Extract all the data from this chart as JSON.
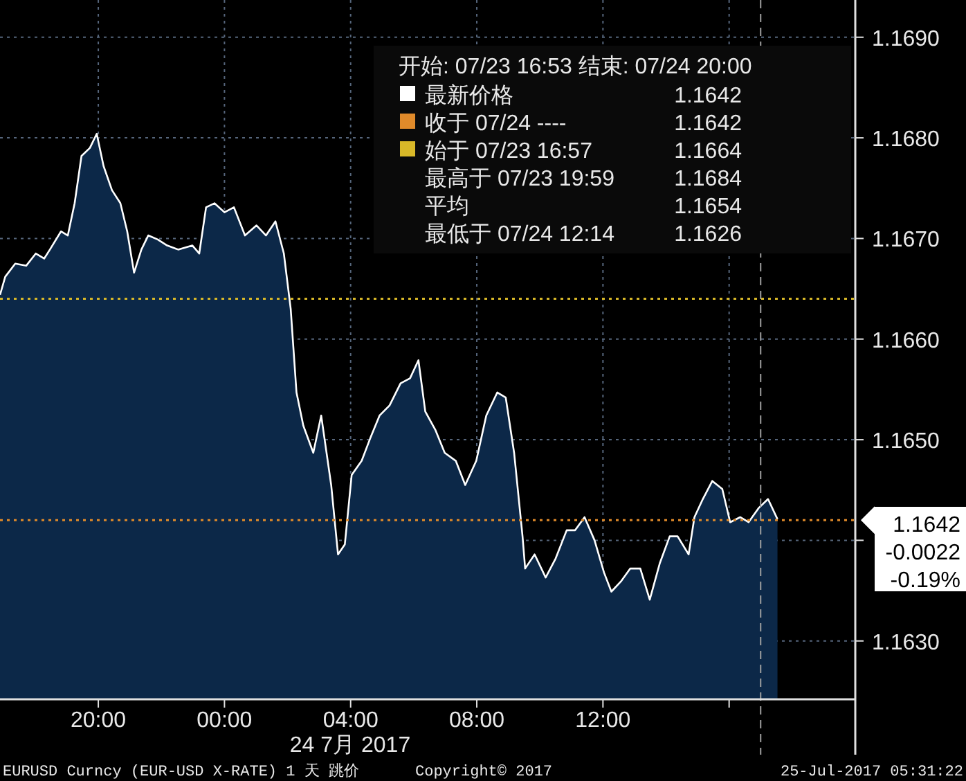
{
  "chart_data": {
    "type": "area",
    "xlim": [
      "2017-07-23T16:53",
      "2017-07-24T20:00"
    ],
    "ylim": [
      1.16242,
      1.16937
    ],
    "xticks": [
      {
        "value": "2017-07-23T20:00",
        "label": "20:00"
      },
      {
        "value": "2017-07-24T00:00",
        "label": "00:00"
      },
      {
        "value": "2017-07-24T04:00",
        "label": "04:00"
      },
      {
        "value": "2017-07-24T08:00",
        "label": "08:00"
      },
      {
        "value": "2017-07-24T12:00",
        "label": "12:00"
      },
      {
        "value": "2017-07-24T16:00",
        "label": null
      }
    ],
    "yticks": [
      {
        "value": 1.163,
        "label": "1.1630"
      },
      {
        "value": 1.164,
        "label": null
      },
      {
        "value": 1.165,
        "label": "1.1650"
      },
      {
        "value": 1.166,
        "label": "1.1660"
      },
      {
        "value": 1.167,
        "label": "1.1670"
      },
      {
        "value": 1.168,
        "label": "1.1680"
      },
      {
        "value": 1.169,
        "label": "1.1690"
      }
    ],
    "grid": true,
    "legend": "top right",
    "series": [
      {
        "name": "最新价格",
        "color": "#ffffff",
        "x": [
          "2017-07-23T16:53",
          "2017-07-23T17:03",
          "2017-07-23T17:22",
          "2017-07-23T17:43",
          "2017-07-23T18:01",
          "2017-07-23T18:17",
          "2017-07-23T18:28",
          "2017-07-23T18:49",
          "2017-07-23T19:02",
          "2017-07-23T19:15",
          "2017-07-23T19:28",
          "2017-07-23T19:44",
          "2017-07-23T19:57",
          "2017-07-23T20:10",
          "2017-07-23T20:26",
          "2017-07-23T20:42",
          "2017-07-23T20:55",
          "2017-07-23T21:08",
          "2017-07-23T21:22",
          "2017-07-23T21:35",
          "2017-07-23T21:53",
          "2017-07-23T22:11",
          "2017-07-23T22:32",
          "2017-07-23T22:59",
          "2017-07-23T23:12",
          "2017-07-23T23:25",
          "2017-07-23T23:41",
          "2017-07-24T00:00",
          "2017-07-24T00:18",
          "2017-07-24T00:39",
          "2017-07-24T01:01",
          "2017-07-24T01:19",
          "2017-07-24T01:37",
          "2017-07-24T01:53",
          "2017-07-24T02:06",
          "2017-07-24T02:17",
          "2017-07-24T02:30",
          "2017-07-24T02:49",
          "2017-07-24T03:04",
          "2017-07-24T03:23",
          "2017-07-24T03:36",
          "2017-07-24T03:49",
          "2017-07-24T04:02",
          "2017-07-24T04:21",
          "2017-07-24T04:37",
          "2017-07-24T04:55",
          "2017-07-24T05:14",
          "2017-07-24T05:35",
          "2017-07-24T05:53",
          "2017-07-24T06:09",
          "2017-07-24T06:22",
          "2017-07-24T06:41",
          "2017-07-24T06:59",
          "2017-07-24T07:20",
          "2017-07-24T07:38",
          "2017-07-24T07:59",
          "2017-07-24T08:18",
          "2017-07-24T08:39",
          "2017-07-24T08:55",
          "2017-07-24T09:11",
          "2017-07-24T09:27",
          "2017-07-24T09:32",
          "2017-07-24T09:50",
          "2017-07-24T10:11",
          "2017-07-24T10:30",
          "2017-07-24T10:51",
          "2017-07-24T11:07",
          "2017-07-24T11:25",
          "2017-07-24T11:44",
          "2017-07-24T12:02",
          "2017-07-24T12:16",
          "2017-07-24T12:34",
          "2017-07-24T12:52",
          "2017-07-24T13:11",
          "2017-07-24T13:29",
          "2017-07-24T13:48",
          "2017-07-24T14:07",
          "2017-07-24T14:22",
          "2017-07-24T14:43",
          "2017-07-24T14:54",
          "2017-07-24T15:10",
          "2017-07-24T15:28",
          "2017-07-24T15:47",
          "2017-07-24T16:02",
          "2017-07-24T16:21",
          "2017-07-24T16:37",
          "2017-07-24T16:56",
          "2017-07-24T17:14",
          "2017-07-24T17:32"
        ],
        "values": [
          1.16644,
          1.16662,
          1.16675,
          1.16673,
          1.16685,
          1.1668,
          1.16689,
          1.16707,
          1.16703,
          1.16735,
          1.16782,
          1.1679,
          1.16804,
          1.16772,
          1.16748,
          1.16735,
          1.16707,
          1.16666,
          1.16689,
          1.16703,
          1.16699,
          1.16693,
          1.16689,
          1.16693,
          1.16685,
          1.16731,
          1.16735,
          1.16726,
          1.16731,
          1.16703,
          1.16713,
          1.16703,
          1.16717,
          1.16685,
          1.1663,
          1.16547,
          1.16514,
          1.16487,
          1.16524,
          1.16455,
          1.16386,
          1.16396,
          1.16465,
          1.16479,
          1.16501,
          1.16524,
          1.16534,
          1.16556,
          1.16561,
          1.16579,
          1.16528,
          1.1651,
          1.16487,
          1.16479,
          1.16455,
          1.16479,
          1.16524,
          1.16547,
          1.16542,
          1.16487,
          1.16404,
          1.16372,
          1.16386,
          1.16363,
          1.16382,
          1.1641,
          1.1641,
          1.16423,
          1.164,
          1.16368,
          1.16349,
          1.16359,
          1.16372,
          1.16372,
          1.16341,
          1.16377,
          1.16404,
          1.16404,
          1.16386,
          1.16423,
          1.16441,
          1.16459,
          1.16451,
          1.16418,
          1.16423,
          1.16418,
          1.16432,
          1.16441,
          1.16421
        ]
      }
    ],
    "ref_lines": [
      {
        "axis": "y",
        "value": 1.1642,
        "color": "#e08a2a",
        "line_style": "dotted"
      },
      {
        "axis": "y",
        "value": 1.1664,
        "color": "#d8b828",
        "line_style": "dotted"
      },
      {
        "axis": "x",
        "value": "2017-07-24T17:00",
        "color": "#a0a0a0",
        "line_style": "dashed"
      }
    ],
    "annotations": [
      "开始: 07/23 16:53 结束: 07/24 20:00",
      "1.1642",
      "1.1642",
      "1.1664",
      "最高于 07/23 19:59",
      "1.1684",
      "平均",
      "1.1654",
      "最低于 07/24 12:14",
      "1.1626",
      "1.1642",
      "-0.0022",
      "-0.19%",
      "24 7月 2017",
      "EURUSD Curncy (EUR-USD X-RATE) 1 天  跳价",
      "Copyright© 2017",
      "25-Jul-2017 05:31:22",
      "收于 07/24 ----",
      "始于 07/23 16:57"
    ]
  }
}
